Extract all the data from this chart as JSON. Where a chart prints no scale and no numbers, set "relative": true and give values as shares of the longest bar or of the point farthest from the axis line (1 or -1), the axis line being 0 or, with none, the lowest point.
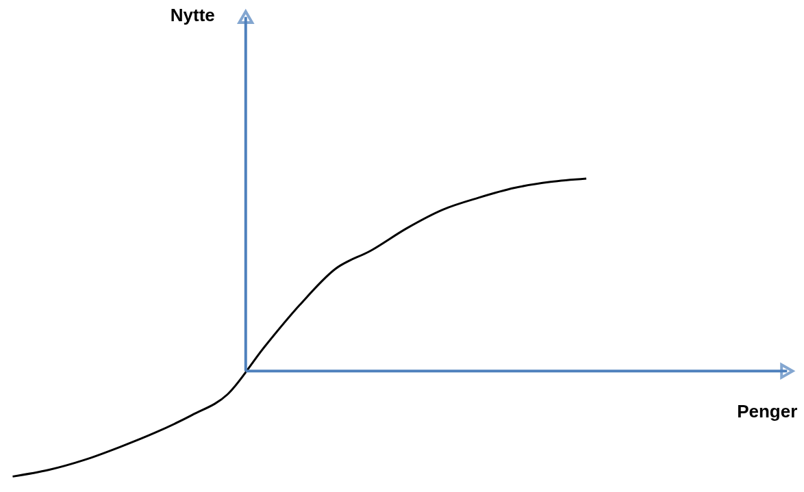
{
  "chart_data": {
    "type": "line",
    "relative": true,
    "annotations": [
      "Nytte",
      "Penger"
    ],
    "categories": [
      null,
      null,
      null,
      null,
      null,
      null,
      null,
      null,
      null,
      null,
      null,
      null,
      null,
      null,
      null,
      null,
      null
    ],
    "series": [
      {
        "color": "#000000",
        "values": [
          -0.548,
          -0.514,
          -0.462,
          -0.394,
          -0.318,
          -0.229,
          -0.12,
          0.12,
          0.342,
          0.531,
          0.627,
          0.743,
          0.839,
          0.901,
          0.952,
          0.983,
          1
        ]
      }
    ],
    "ref_lines": [
      {
        "axis": "y",
        "value": 0,
        "color": "#4f81bd"
      }
    ],
    "marker": "none",
    "line_style": "solid"
  }
}
